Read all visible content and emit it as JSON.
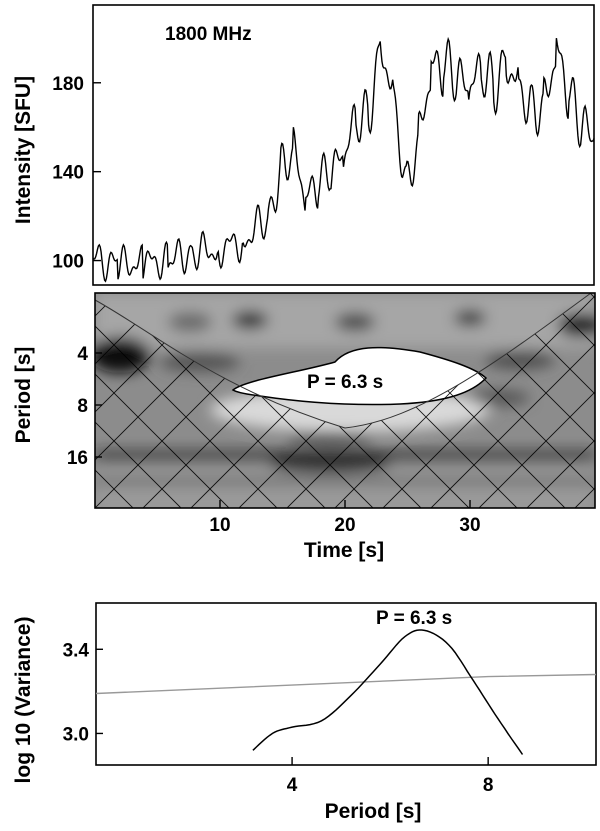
{
  "chart_data": [
    {
      "type": "line",
      "panel": "light-curve",
      "annotation": "1800 MHz",
      "ylabel": "Intensity [SFU]",
      "xlim": [
        0,
        40
      ],
      "ylim": [
        89,
        215
      ],
      "yticks": [
        100,
        140,
        180
      ],
      "x": [
        0,
        2,
        4,
        6,
        8,
        10,
        12,
        14,
        15,
        16,
        17,
        18,
        19,
        20,
        21,
        22,
        23,
        24,
        25,
        26,
        27,
        28,
        29,
        30,
        31,
        32,
        33,
        34,
        35,
        36,
        37,
        38,
        39,
        40
      ],
      "series": [
        {
          "values": [
            101,
            98,
            99,
            100,
            104,
            105,
            109,
            120,
            141,
            150,
            127,
            135,
            140,
            146,
            163,
            165,
            198,
            175,
            133,
            155,
            186,
            188,
            182,
            176,
            185,
            178,
            190,
            180,
            168,
            170,
            195,
            175,
            160,
            155
          ]
        }
      ]
    },
    {
      "type": "heatmap",
      "panel": "wavelet-power-spectrum",
      "ylabel": "Period [s]",
      "xlabel": "Time [s]",
      "xlim": [
        0,
        40
      ],
      "xticks": [
        10,
        20,
        30
      ],
      "yticks": [
        4,
        8,
        16
      ],
      "annotation": "P = 6.3 s",
      "significant_period": 6.3,
      "cone_of_influence": "hatched"
    },
    {
      "type": "line",
      "panel": "global-wavelet-spectrum",
      "ylabel": "log 10 (Variance)",
      "xlabel": "Period [s]",
      "xlim": [
        0,
        10.2
      ],
      "ylim": [
        2.85,
        3.62
      ],
      "xticks": [
        4,
        8
      ],
      "yticks": [
        3.0,
        3.4
      ],
      "annotation": "P = 6.3 s",
      "series": [
        {
          "values": [
            [
              3.2,
              2.92
            ],
            [
              3.6,
              3.0
            ],
            [
              4.0,
              3.03
            ],
            [
              4.6,
              3.06
            ],
            [
              5.2,
              3.18
            ],
            [
              5.8,
              3.33
            ],
            [
              6.3,
              3.46
            ],
            [
              6.7,
              3.49
            ],
            [
              7.2,
              3.42
            ],
            [
              7.7,
              3.25
            ],
            [
              8.2,
              3.07
            ],
            [
              8.7,
              2.9
            ]
          ]
        },
        {
          "values": [
            [
              0.0,
              3.19
            ],
            [
              2.0,
              3.21
            ],
            [
              4.0,
              3.23
            ],
            [
              6.0,
              3.25
            ],
            [
              8.0,
              3.27
            ],
            [
              10.2,
              3.28
            ]
          ]
        }
      ]
    }
  ]
}
